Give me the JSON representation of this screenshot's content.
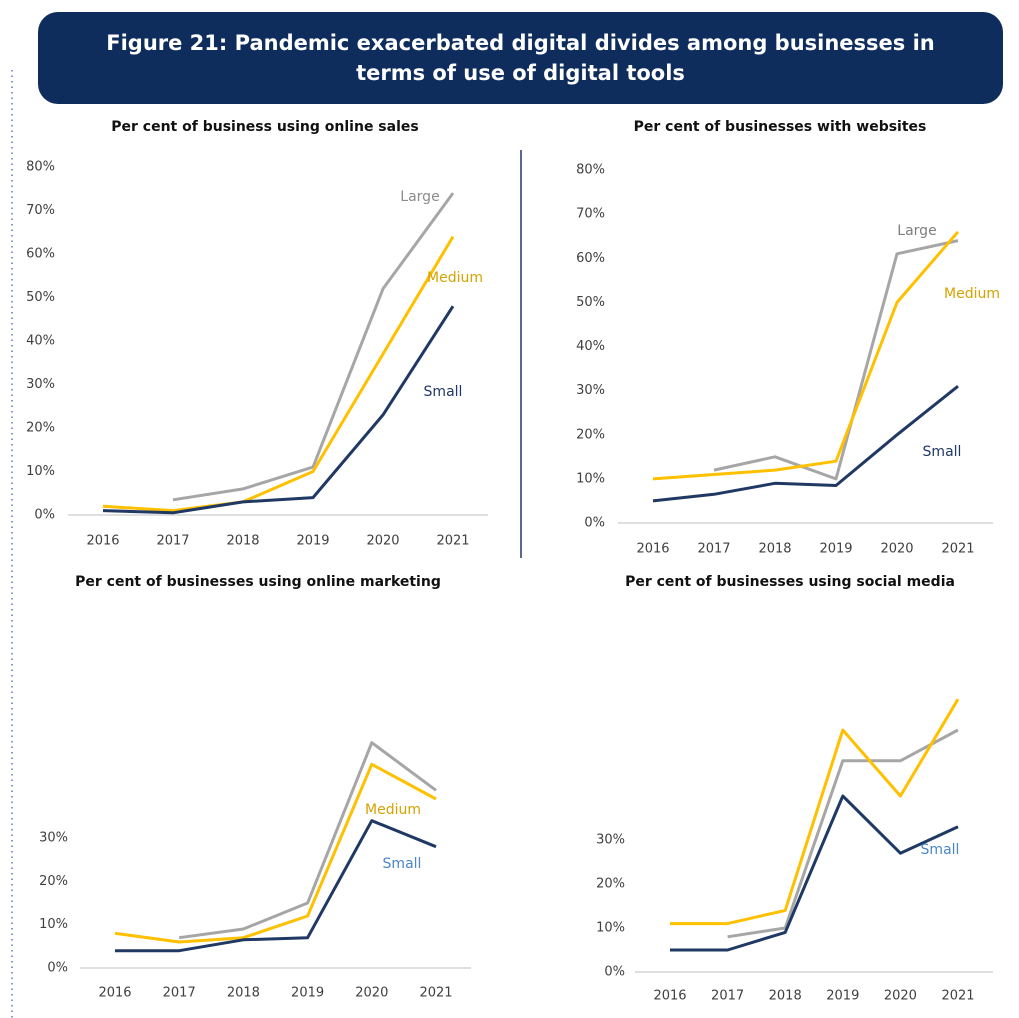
{
  "title": "Figure 21: Pandemic exacerbated digital divides among businesses in terms of use of digital tools",
  "chart_data": [
    {
      "type": "line",
      "title": "Per cent of business using online sales",
      "categories": [
        "2016",
        "2017",
        "2018",
        "2019",
        "2020",
        "2021"
      ],
      "ylim": [
        0,
        80
      ],
      "yticks": [
        {
          "value": 0,
          "label": "0%"
        },
        {
          "value": 10,
          "label": "10%"
        },
        {
          "value": 20,
          "label": "20%"
        },
        {
          "value": 30,
          "label": "30%"
        },
        {
          "value": 40,
          "label": "40%"
        },
        {
          "value": 50,
          "label": "50%"
        },
        {
          "value": 60,
          "label": "60%"
        },
        {
          "value": 70,
          "label": "70%"
        },
        {
          "value": 80,
          "label": "80%"
        }
      ],
      "series": [
        {
          "name": "Large",
          "color": "#a6a6a6",
          "label_color": "#8c8c8c",
          "values": [
            null,
            3.5,
            6,
            11,
            52,
            74
          ]
        },
        {
          "name": "Medium",
          "color": "#ffc000",
          "label_color": "#d4a300",
          "values": [
            2,
            1,
            3,
            10,
            37,
            64
          ]
        },
        {
          "name": "Small",
          "color": "#203864",
          "label_color": "#203864",
          "values": [
            1,
            0.5,
            3,
            4,
            23,
            48
          ]
        }
      ]
    },
    {
      "type": "line",
      "title": "Per cent of businesses with websites",
      "categories": [
        "2016",
        "2017",
        "2018",
        "2019",
        "2020",
        "2021"
      ],
      "ylim": [
        0,
        80
      ],
      "yticks": [
        {
          "value": 0,
          "label": "0%"
        },
        {
          "value": 10,
          "label": "10%"
        },
        {
          "value": 20,
          "label": "20%"
        },
        {
          "value": 30,
          "label": "30%"
        },
        {
          "value": 40,
          "label": "40%"
        },
        {
          "value": 50,
          "label": "50%"
        },
        {
          "value": 60,
          "label": "60%"
        },
        {
          "value": 70,
          "label": "70%"
        },
        {
          "value": 80,
          "label": "80%"
        }
      ],
      "series": [
        {
          "name": "Large",
          "color": "#a6a6a6",
          "label_color": "#7f7f7f",
          "values": [
            null,
            12,
            15,
            10,
            61,
            64
          ]
        },
        {
          "name": "Medium",
          "color": "#ffc000",
          "label_color": "#d4a300",
          "values": [
            10,
            11,
            12,
            14,
            50,
            66
          ]
        },
        {
          "name": "Small",
          "color": "#203864",
          "label_color": "#203864",
          "values": [
            5,
            6.5,
            9,
            8.5,
            20,
            31
          ]
        }
      ]
    },
    {
      "type": "line",
      "title": "Per cent of businesses using online marketing",
      "categories": [
        "2016",
        "2017",
        "2018",
        "2019",
        "2020",
        "2021"
      ],
      "ylim": [
        0,
        60
      ],
      "yticks": [
        {
          "value": 0,
          "label": "0%"
        },
        {
          "value": 10,
          "label": "10%"
        },
        {
          "value": 20,
          "label": "20%"
        },
        {
          "value": 30,
          "label": "30%"
        }
      ],
      "series": [
        {
          "color": "#a6a6a6",
          "values": [
            null,
            7,
            9,
            15,
            52,
            41
          ]
        },
        {
          "name": "Medium",
          "color": "#ffc000",
          "label_color": "#d4a300",
          "values": [
            8,
            6,
            7,
            12,
            47,
            39
          ]
        },
        {
          "name": "Small",
          "color": "#203864",
          "label_color": "#4a86c8",
          "values": [
            4,
            4,
            6.5,
            7,
            34,
            28
          ]
        }
      ]
    },
    {
      "type": "line",
      "title": "Per cent of businesses using social media",
      "categories": [
        "2016",
        "2017",
        "2018",
        "2019",
        "2020",
        "2021"
      ],
      "ylim": [
        0,
        70
      ],
      "yticks": [
        {
          "value": 0,
          "label": "0%"
        },
        {
          "value": 10,
          "label": "10%"
        },
        {
          "value": 20,
          "label": "20%"
        },
        {
          "value": 30,
          "label": "30%"
        }
      ],
      "series": [
        {
          "color": "#a6a6a6",
          "values": [
            null,
            8,
            10,
            48,
            48,
            55
          ]
        },
        {
          "color": "#ffc000",
          "values": [
            11,
            11,
            14,
            55,
            40,
            62
          ]
        },
        {
          "name": "Small",
          "color": "#203864",
          "label_color": "#4a86c8",
          "values": [
            5,
            5,
            9,
            40,
            27,
            33
          ]
        }
      ]
    }
  ]
}
